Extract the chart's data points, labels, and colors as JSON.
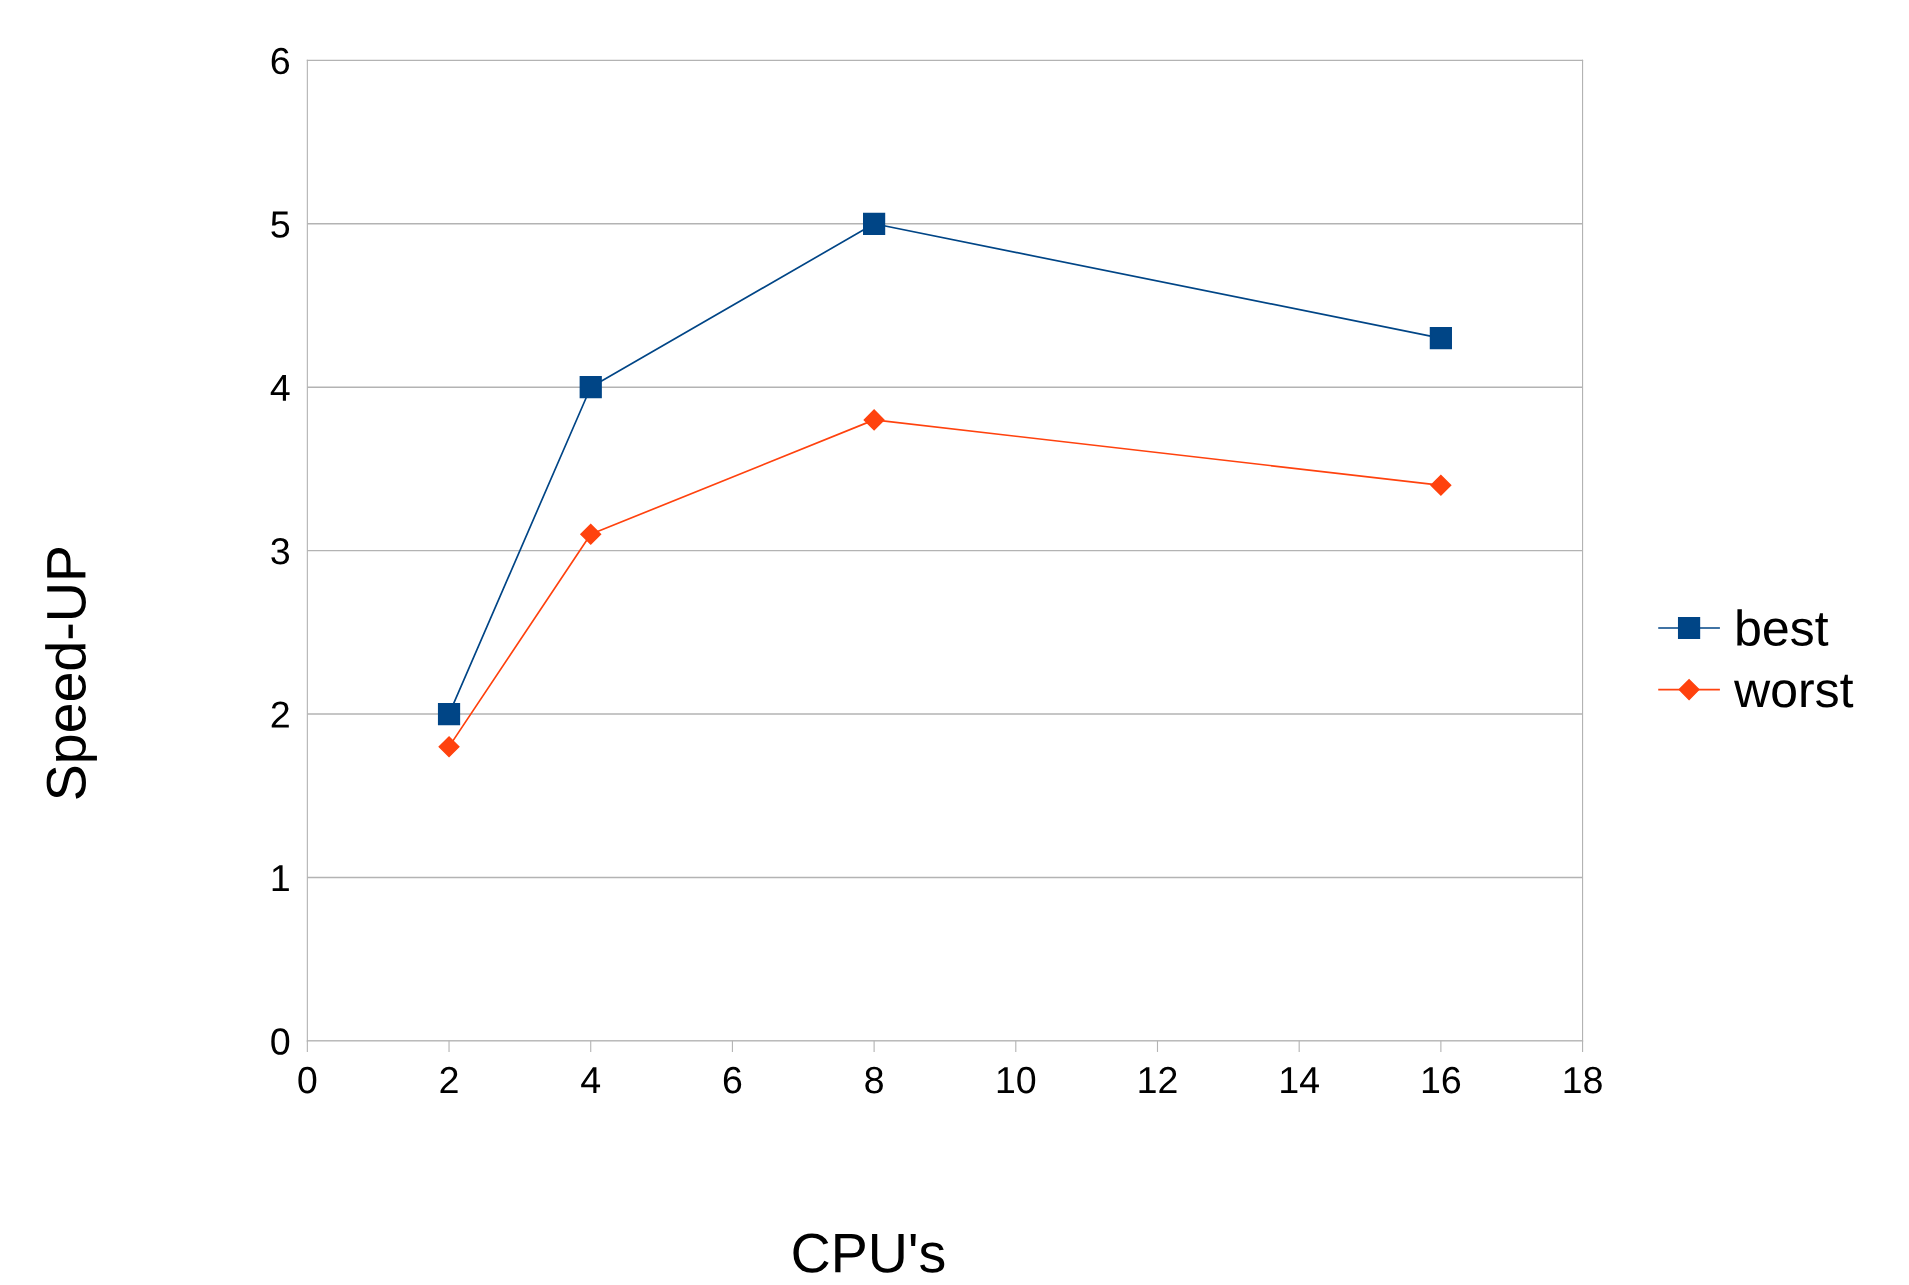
{
  "chart_data": {
    "type": "line",
    "xlabel": "CPU's",
    "ylabel": "Speed-UP",
    "x": [
      2,
      4,
      8,
      16
    ],
    "series": [
      {
        "name": "best",
        "color": "#004586",
        "values": [
          2,
          4,
          5,
          4.3
        ],
        "marker": "square"
      },
      {
        "name": "worst",
        "color": "#ff420e",
        "values": [
          1.8,
          3.1,
          3.8,
          3.4
        ],
        "marker": "diamond"
      }
    ],
    "xlim": [
      0,
      18
    ],
    "xticks": [
      0,
      2,
      4,
      6,
      8,
      10,
      12,
      14,
      16,
      18
    ],
    "ylim": [
      0,
      6
    ],
    "yticks": [
      0,
      1,
      2,
      3,
      4,
      5,
      6
    ],
    "grid": "y",
    "legend": "right",
    "line_style": "solid"
  }
}
